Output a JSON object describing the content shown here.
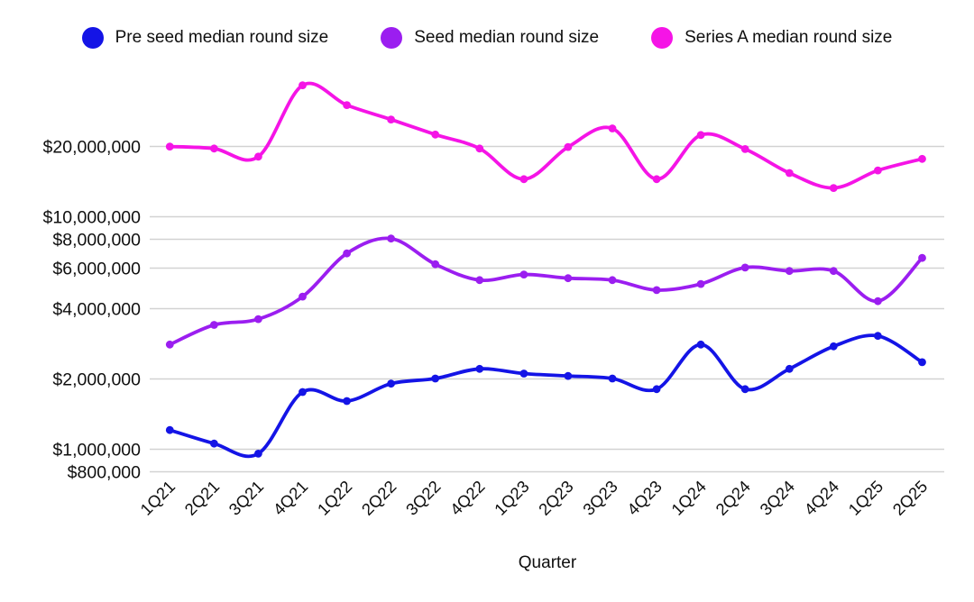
{
  "legend": {
    "items": [
      {
        "label": "Pre seed median round size",
        "color": "#1414e6"
      },
      {
        "label": "Seed median round size",
        "color": "#9b1ef0"
      },
      {
        "label": "Series A median round size",
        "color": "#f514e6"
      }
    ]
  },
  "chart_data": {
    "type": "line",
    "title": "",
    "xlabel": "Quarter",
    "ylabel": "",
    "y_scale": "log",
    "grid": true,
    "legend_position": "top",
    "line_style": "smooth",
    "categories": [
      "1Q21",
      "2Q21",
      "3Q21",
      "4Q21",
      "1Q22",
      "2Q22",
      "3Q22",
      "4Q22",
      "1Q23",
      "2Q23",
      "3Q23",
      "4Q23",
      "1Q24",
      "2Q24",
      "3Q24",
      "4Q24",
      "1Q25",
      "2Q25"
    ],
    "y_ticks": [
      {
        "value": 20000000,
        "label": "$20,000,000"
      },
      {
        "value": 10000000,
        "label": "$10,000,000"
      },
      {
        "value": 8000000,
        "label": "$8,000,000"
      },
      {
        "value": 6000000,
        "label": "$6,000,000"
      },
      {
        "value": 4000000,
        "label": "$4,000,000"
      },
      {
        "value": 2000000,
        "label": "$2,000,000"
      },
      {
        "value": 1000000,
        "label": "$1,000,000"
      },
      {
        "value": 800000,
        "label": "$800,000"
      }
    ],
    "series": [
      {
        "name": "Pre seed median round size",
        "color": "#1414e6",
        "values": [
          1200000,
          1050000,
          950000,
          1750000,
          1600000,
          1900000,
          2000000,
          2200000,
          2100000,
          2050000,
          2000000,
          1800000,
          2800000,
          1800000,
          2200000,
          2750000,
          3050000,
          2350000
        ]
      },
      {
        "name": "Seed median round size",
        "color": "#9b1ef0",
        "values": [
          2800000,
          3400000,
          3600000,
          4500000,
          6900000,
          8000000,
          6200000,
          5300000,
          5600000,
          5400000,
          5300000,
          4800000,
          5100000,
          6000000,
          5800000,
          5800000,
          4300000,
          6600000
        ]
      },
      {
        "name": "Series A median round size",
        "color": "#f514e6",
        "values": [
          19900000,
          19500000,
          18000000,
          36500000,
          30000000,
          26000000,
          22400000,
          19500000,
          14400000,
          19800000,
          23800000,
          14400000,
          22300000,
          19400000,
          15300000,
          13200000,
          15700000,
          17600000
        ]
      }
    ]
  }
}
